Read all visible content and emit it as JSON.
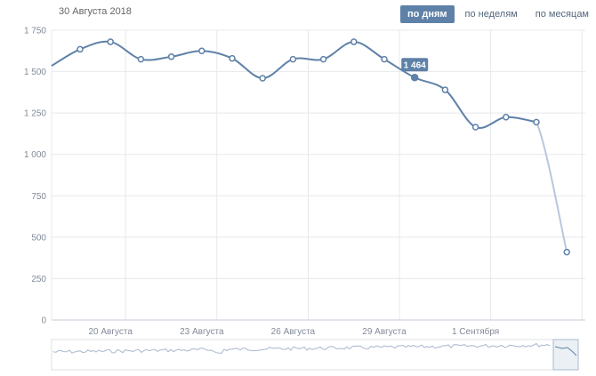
{
  "header": {
    "date": "30 Августа 2018",
    "tabs": [
      {
        "label": "по дням",
        "active": true
      },
      {
        "label": "по неделям",
        "active": false
      },
      {
        "label": "по месяцам",
        "active": false
      }
    ]
  },
  "colors": {
    "line": "#5e81a8",
    "line_faded": "#b8c8dc",
    "grid": "#e7e8ec",
    "tab_active": "#5e81a8",
    "tooltip": "#5e81a8"
  },
  "chart_data": {
    "type": "line",
    "title": "",
    "xlabel": "",
    "ylabel": "",
    "ylim": [
      0,
      1750
    ],
    "yticks": [
      0,
      250,
      500,
      750,
      1000,
      1250,
      1500,
      1750
    ],
    "ytick_labels": [
      "0",
      "250",
      "500",
      "750",
      "1 000",
      "1 250",
      "1 500",
      "1 750"
    ],
    "xtick_labels": [
      "20 Августа",
      "23 Августа",
      "26 Августа",
      "29 Августа",
      "1 Сентября"
    ],
    "xtick_index": [
      1,
      4,
      7,
      10,
      13
    ],
    "series": [
      {
        "values": [
          1635,
          1680,
          1575,
          1590,
          1625,
          1580,
          1460,
          1575,
          1575,
          1680,
          1575,
          1464,
          1390,
          1165,
          1225,
          1195,
          410
        ],
        "partial_last": true
      }
    ],
    "leading_value": 1535,
    "highlight": {
      "index": 11,
      "label": "1 464"
    },
    "grid": true
  }
}
